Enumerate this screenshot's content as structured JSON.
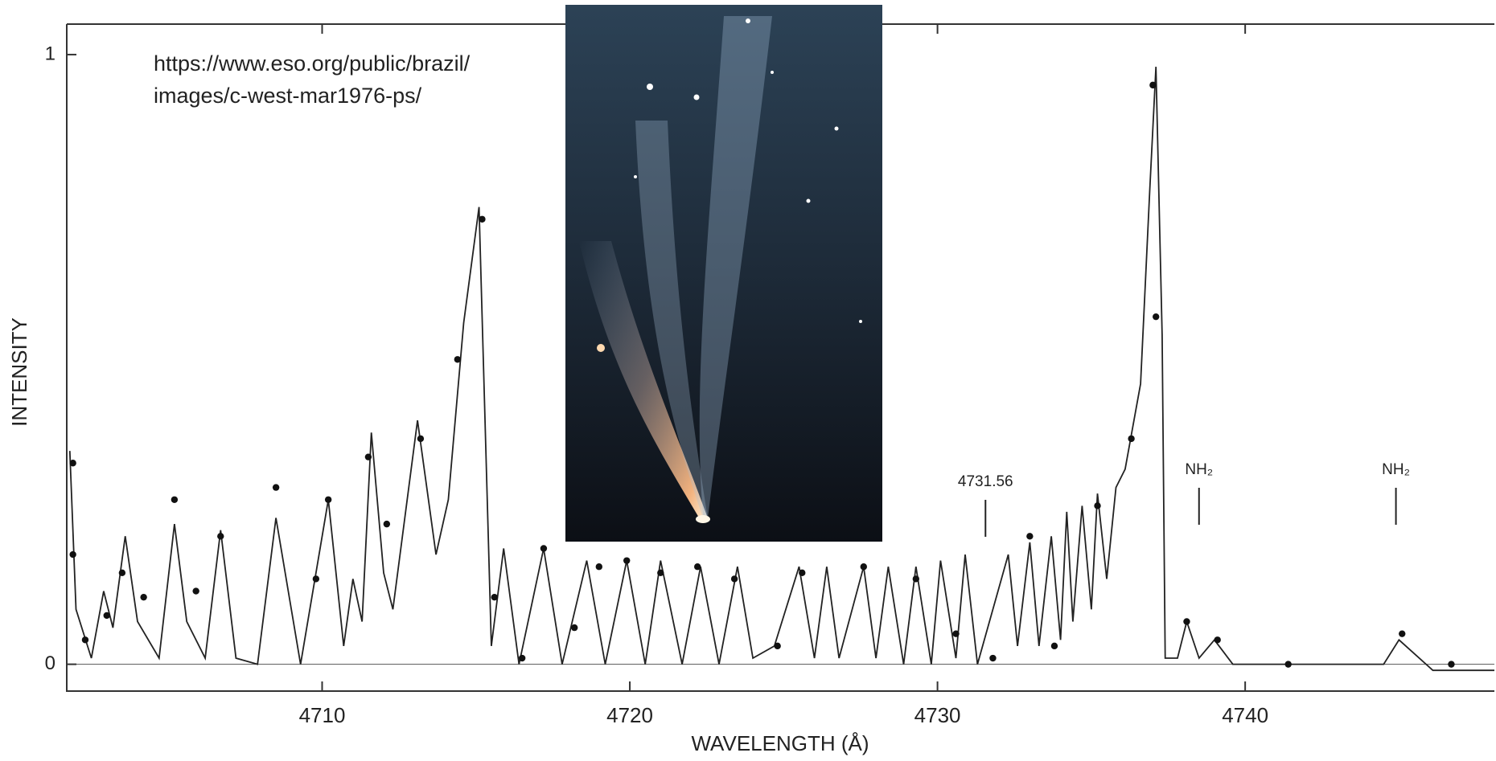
{
  "chart_data": {
    "type": "line",
    "xlabel": "WAVELENGTH (Å)",
    "ylabel": "INTENSITY",
    "xlim": [
      4701.7,
      4748.1
    ],
    "ylim": [
      -0.044,
      1.05
    ],
    "xticks": [
      4710,
      4720,
      4730,
      4740
    ],
    "yticks": [
      0,
      1
    ],
    "series": [
      {
        "kind": "line",
        "color": "#222222",
        "x": [
          4701.8,
          4702.0,
          4702.5,
          4702.9,
          4703.2,
          4703.6,
          4704.0,
          4704.7,
          4705.2,
          4705.6,
          4706.2,
          4706.7,
          4707.2,
          4707.9,
          4708.5,
          4708.9,
          4709.3,
          4710.2,
          4710.7,
          4711.0,
          4711.3,
          4711.6,
          4712.0,
          4712.3,
          4713.1,
          4713.7,
          4714.1,
          4714.6,
          4715.1,
          4715.5,
          4715.9,
          4716.4,
          4717.2,
          4717.8,
          4718.6,
          4719.2,
          4719.9,
          4720.5,
          4721.0,
          4721.7,
          4722.3,
          4722.9,
          4723.5,
          4724.0,
          4724.7,
          4725.5,
          4726.0,
          4726.4,
          4726.8,
          4727.6,
          4728.0,
          4728.4,
          4728.9,
          4729.3,
          4729.8,
          4730.1,
          4730.6,
          4730.9,
          4731.3,
          4732.3,
          4732.6,
          4733.0,
          4733.3,
          4733.7,
          4734.0,
          4734.2,
          4734.4,
          4734.7,
          4735.0,
          4735.2,
          4735.5,
          4735.8,
          4736.1,
          4736.6,
          4736.9,
          4737.1,
          4737.3,
          4737.4,
          4737.8,
          4738.1,
          4738.5,
          4739.0,
          4739.6,
          4741.4,
          4744.5,
          4745.0,
          4746.1,
          4748.1
        ],
        "values": [
          0.35,
          0.09,
          0.01,
          0.12,
          0.06,
          0.21,
          0.07,
          0.01,
          0.23,
          0.07,
          0.01,
          0.22,
          0.01,
          0.0,
          0.24,
          0.12,
          0.0,
          0.27,
          0.03,
          0.14,
          0.07,
          0.38,
          0.15,
          0.09,
          0.4,
          0.18,
          0.27,
          0.56,
          0.75,
          0.03,
          0.19,
          0.0,
          0.19,
          0.0,
          0.17,
          0.0,
          0.17,
          0.0,
          0.17,
          0.0,
          0.16,
          0.0,
          0.16,
          0.01,
          0.03,
          0.16,
          0.01,
          0.16,
          0.01,
          0.16,
          0.01,
          0.16,
          0.0,
          0.16,
          0.0,
          0.17,
          0.01,
          0.18,
          0.0,
          0.18,
          0.03,
          0.2,
          0.03,
          0.21,
          0.04,
          0.25,
          0.07,
          0.26,
          0.09,
          0.28,
          0.14,
          0.29,
          0.32,
          0.46,
          0.78,
          0.98,
          0.54,
          0.01,
          0.01,
          0.07,
          0.01,
          0.04,
          0.0,
          0.0,
          0.0,
          0.04,
          -0.01,
          -0.01
        ]
      },
      {
        "kind": "scatter",
        "color": "#111111",
        "x": [
          4701.9,
          4701.9,
          4702.3,
          4703.0,
          4703.5,
          4704.2,
          4705.2,
          4705.9,
          4706.7,
          4708.5,
          4709.8,
          4710.2,
          4711.5,
          4712.1,
          4713.2,
          4714.4,
          4715.2,
          4715.6,
          4716.5,
          4717.2,
          4718.2,
          4719.0,
          4719.9,
          4721.0,
          4722.2,
          4723.4,
          4724.8,
          4725.6,
          4727.6,
          4729.3,
          4730.6,
          4731.8,
          4733.0,
          4733.8,
          4735.2,
          4736.3,
          4737.0,
          4737.1,
          4738.1,
          4739.1,
          4741.4,
          4745.1,
          4746.7
        ],
        "values": [
          0.33,
          0.18,
          0.04,
          0.08,
          0.15,
          0.11,
          0.27,
          0.12,
          0.21,
          0.29,
          0.14,
          0.27,
          0.34,
          0.23,
          0.37,
          0.5,
          0.73,
          0.11,
          0.01,
          0.19,
          0.06,
          0.16,
          0.17,
          0.15,
          0.16,
          0.14,
          0.03,
          0.15,
          0.16,
          0.14,
          0.05,
          0.01,
          0.21,
          0.03,
          0.26,
          0.37,
          0.95,
          0.57,
          0.07,
          0.04,
          0.0,
          0.05,
          0.0
        ]
      }
    ],
    "annotations": [
      {
        "text": "4731.56",
        "x": 4731.56
      },
      {
        "text": "NH₂",
        "x": 4738.5
      },
      {
        "text": "NH₂",
        "x": 4744.9
      }
    ]
  },
  "credit": {
    "lines": [
      "https://www.eso.org/public/brazil/",
      "images/c-west-mar1976-ps/"
    ]
  }
}
